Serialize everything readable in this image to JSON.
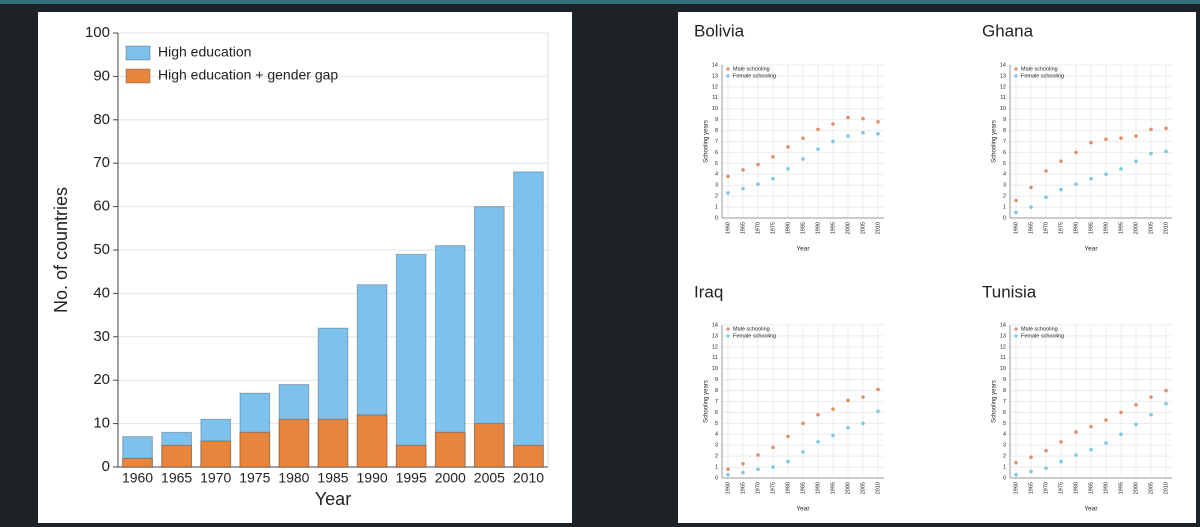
{
  "chart_data": [
    {
      "type": "bar",
      "categories": [
        "1960",
        "1965",
        "1970",
        "1975",
        "1980",
        "1985",
        "1990",
        "1995",
        "2000",
        "2005",
        "2010"
      ],
      "series": [
        {
          "name": "High education",
          "color": "#7cc2ec",
          "values": [
            7,
            8,
            11,
            17,
            19,
            32,
            42,
            49,
            51,
            60,
            68
          ]
        },
        {
          "name": "High education + gender gap",
          "color": "#e8843c",
          "values": [
            2,
            5,
            6,
            8,
            11,
            11,
            12,
            5,
            8,
            10,
            5
          ]
        }
      ],
      "ylim": [
        0,
        100
      ],
      "yticks": [
        0,
        10,
        20,
        30,
        40,
        50,
        60,
        70,
        80,
        90,
        100
      ],
      "ylabel": "No. of countries",
      "xlabel": "Year",
      "grid": true,
      "legend": "top-left"
    },
    {
      "type": "scatter",
      "title": "Bolivia",
      "x": [
        1960,
        1965,
        1970,
        1975,
        1980,
        1985,
        1990,
        1995,
        2000,
        2005,
        2010
      ],
      "series": [
        {
          "name": "Male schooling",
          "color": "#e0906a",
          "values": [
            3.8,
            4.4,
            4.9,
            5.6,
            6.5,
            7.3,
            8.1,
            8.6,
            9.2,
            9.1,
            8.8
          ]
        },
        {
          "name": "Female schooling",
          "color": "#7ec8e3",
          "values": [
            2.3,
            2.7,
            3.1,
            3.6,
            4.5,
            5.4,
            6.3,
            7.0,
            7.5,
            7.8,
            7.7
          ]
        }
      ],
      "xlim": [
        1958,
        2012
      ],
      "xticks": [
        1960,
        1965,
        1970,
        1975,
        1980,
        1985,
        1990,
        1995,
        2000,
        2005,
        2010
      ],
      "ylim": [
        0,
        14
      ],
      "yticks": [
        0,
        1,
        2,
        3,
        4,
        5,
        6,
        7,
        8,
        9,
        10,
        11,
        12,
        13,
        14
      ],
      "ylabel": "Schooling years",
      "xlabel": "Year",
      "grid": true,
      "legend": "top-left"
    },
    {
      "type": "scatter",
      "title": "Ghana",
      "x": [
        1960,
        1965,
        1970,
        1975,
        1980,
        1985,
        1990,
        1995,
        2000,
        2005,
        2010
      ],
      "series": [
        {
          "name": "Male schooling",
          "color": "#e0906a",
          "values": [
            1.6,
            2.8,
            4.3,
            5.2,
            6.0,
            6.9,
            7.2,
            7.3,
            7.5,
            8.1,
            8.2
          ]
        },
        {
          "name": "Female schooling",
          "color": "#7ec8e3",
          "values": [
            0.5,
            1.0,
            1.9,
            2.6,
            3.1,
            3.6,
            4.0,
            4.5,
            5.2,
            5.9,
            6.1
          ]
        }
      ],
      "xlim": [
        1958,
        2012
      ],
      "xticks": [
        1960,
        1965,
        1970,
        1975,
        1980,
        1985,
        1990,
        1995,
        2000,
        2005,
        2010
      ],
      "ylim": [
        0,
        14
      ],
      "yticks": [
        0,
        1,
        2,
        3,
        4,
        5,
        6,
        7,
        8,
        9,
        10,
        11,
        12,
        13,
        14
      ],
      "ylabel": "Schooling years",
      "xlabel": "Year",
      "grid": true,
      "legend": "top-left"
    },
    {
      "type": "scatter",
      "title": "Iraq",
      "x": [
        1960,
        1965,
        1970,
        1975,
        1980,
        1985,
        1990,
        1995,
        2000,
        2005,
        2010
      ],
      "series": [
        {
          "name": "Male schooling",
          "color": "#e0906a",
          "values": [
            0.8,
            1.3,
            2.1,
            2.8,
            3.8,
            5.0,
            5.8,
            6.3,
            7.1,
            7.4,
            8.1
          ]
        },
        {
          "name": "Female schooling",
          "color": "#7ec8e3",
          "values": [
            0.3,
            0.5,
            0.8,
            1.0,
            1.5,
            2.4,
            3.3,
            3.9,
            4.6,
            5.0,
            6.1
          ]
        }
      ],
      "xlim": [
        1958,
        2012
      ],
      "xticks": [
        1960,
        1965,
        1970,
        1975,
        1980,
        1985,
        1990,
        1995,
        2000,
        2005,
        2010
      ],
      "ylim": [
        0,
        14
      ],
      "yticks": [
        0,
        1,
        2,
        3,
        4,
        5,
        6,
        7,
        8,
        9,
        10,
        11,
        12,
        13,
        14
      ],
      "ylabel": "Schooling years",
      "xlabel": "Year",
      "grid": true,
      "legend": "top-left"
    },
    {
      "type": "scatter",
      "title": "Tunisia",
      "x": [
        1960,
        1965,
        1970,
        1975,
        1980,
        1985,
        1990,
        1995,
        2000,
        2005,
        2010
      ],
      "series": [
        {
          "name": "Male schooling",
          "color": "#e0906a",
          "values": [
            1.4,
            1.9,
            2.5,
            3.3,
            4.2,
            4.7,
            5.3,
            6.0,
            6.7,
            7.4,
            8.0
          ]
        },
        {
          "name": "Female schooling",
          "color": "#7ec8e3",
          "values": [
            0.3,
            0.6,
            0.9,
            1.5,
            2.1,
            2.6,
            3.2,
            4.0,
            4.9,
            5.8,
            6.8
          ]
        }
      ],
      "xlim": [
        1958,
        2012
      ],
      "xticks": [
        1960,
        1965,
        1970,
        1975,
        1980,
        1985,
        1990,
        1995,
        2000,
        2005,
        2010
      ],
      "ylim": [
        0,
        14
      ],
      "yticks": [
        0,
        1,
        2,
        3,
        4,
        5,
        6,
        7,
        8,
        9,
        10,
        11,
        12,
        13,
        14
      ],
      "ylabel": "Schooling years",
      "xlabel": "Year",
      "grid": true,
      "legend": "top-left"
    }
  ]
}
